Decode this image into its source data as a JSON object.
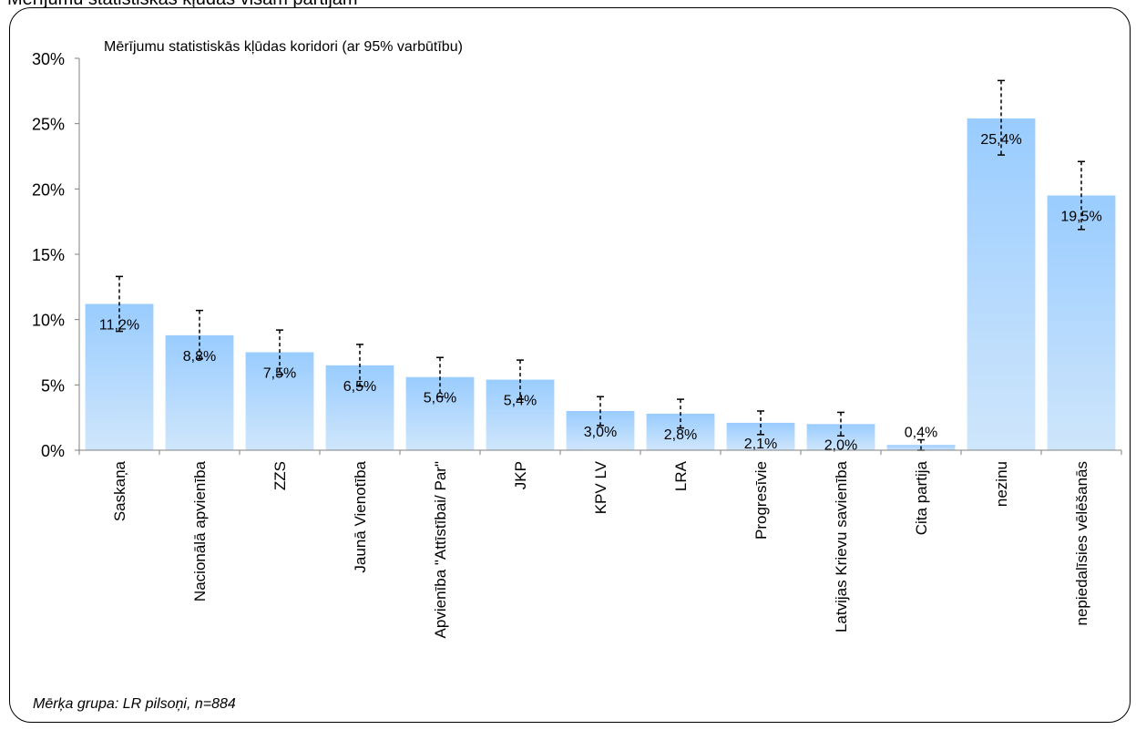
{
  "page": {
    "header": "Mērījumu statistiskās kļūdas visām partijām",
    "footnote": "Mērķa grupa: LR pilsoņi, n=884"
  },
  "chart_data": {
    "type": "bar",
    "title": "Mērījumu statistiskās kļūdas koridori (ar 95% varbūtību)",
    "xlabel": "",
    "ylabel": "",
    "ylim": [
      0,
      30
    ],
    "yticks": [
      0,
      5,
      10,
      15,
      20,
      25,
      30
    ],
    "ytick_labels": [
      "0%",
      "5%",
      "10%",
      "15%",
      "20%",
      "25%",
      "30%"
    ],
    "categories": [
      "Saskaņa",
      "Nacionālā apvienība",
      "ZZS",
      "Jaunā Vienotība",
      "Apvienība \"Attīstībai/ Par\"",
      "JKP",
      "KPV LV",
      "LRA",
      "Progresīvie",
      "Latvijas Krievu savienība",
      "Cita partija",
      "nezinu",
      "nepiedalīsies vēlēšanās"
    ],
    "values": [
      11.2,
      8.8,
      7.5,
      6.5,
      5.6,
      5.4,
      3.0,
      2.8,
      2.1,
      2.0,
      0.4,
      25.4,
      19.5
    ],
    "value_labels": [
      "11,2%",
      "8,8%",
      "7,5%",
      "6,5%",
      "5,6%",
      "5,4%",
      "3,0%",
      "2,8%",
      "2,1%",
      "2,0%",
      "0,4%",
      "25,4%",
      "19,5%"
    ],
    "error_low": [
      9.1,
      7.0,
      5.8,
      4.9,
      4.1,
      3.9,
      1.9,
      1.7,
      1.2,
      1.1,
      0.0,
      22.6,
      16.9
    ],
    "error_high": [
      13.3,
      10.7,
      9.2,
      8.1,
      7.1,
      6.9,
      4.1,
      3.9,
      3.0,
      2.9,
      0.8,
      28.3,
      22.1
    ],
    "grid": false,
    "legend": "none",
    "colors": {
      "bar_top": "#99ccff",
      "bar_bottom": "#cfe6fb",
      "axis": "#808080",
      "error_bar": "#000000"
    }
  }
}
